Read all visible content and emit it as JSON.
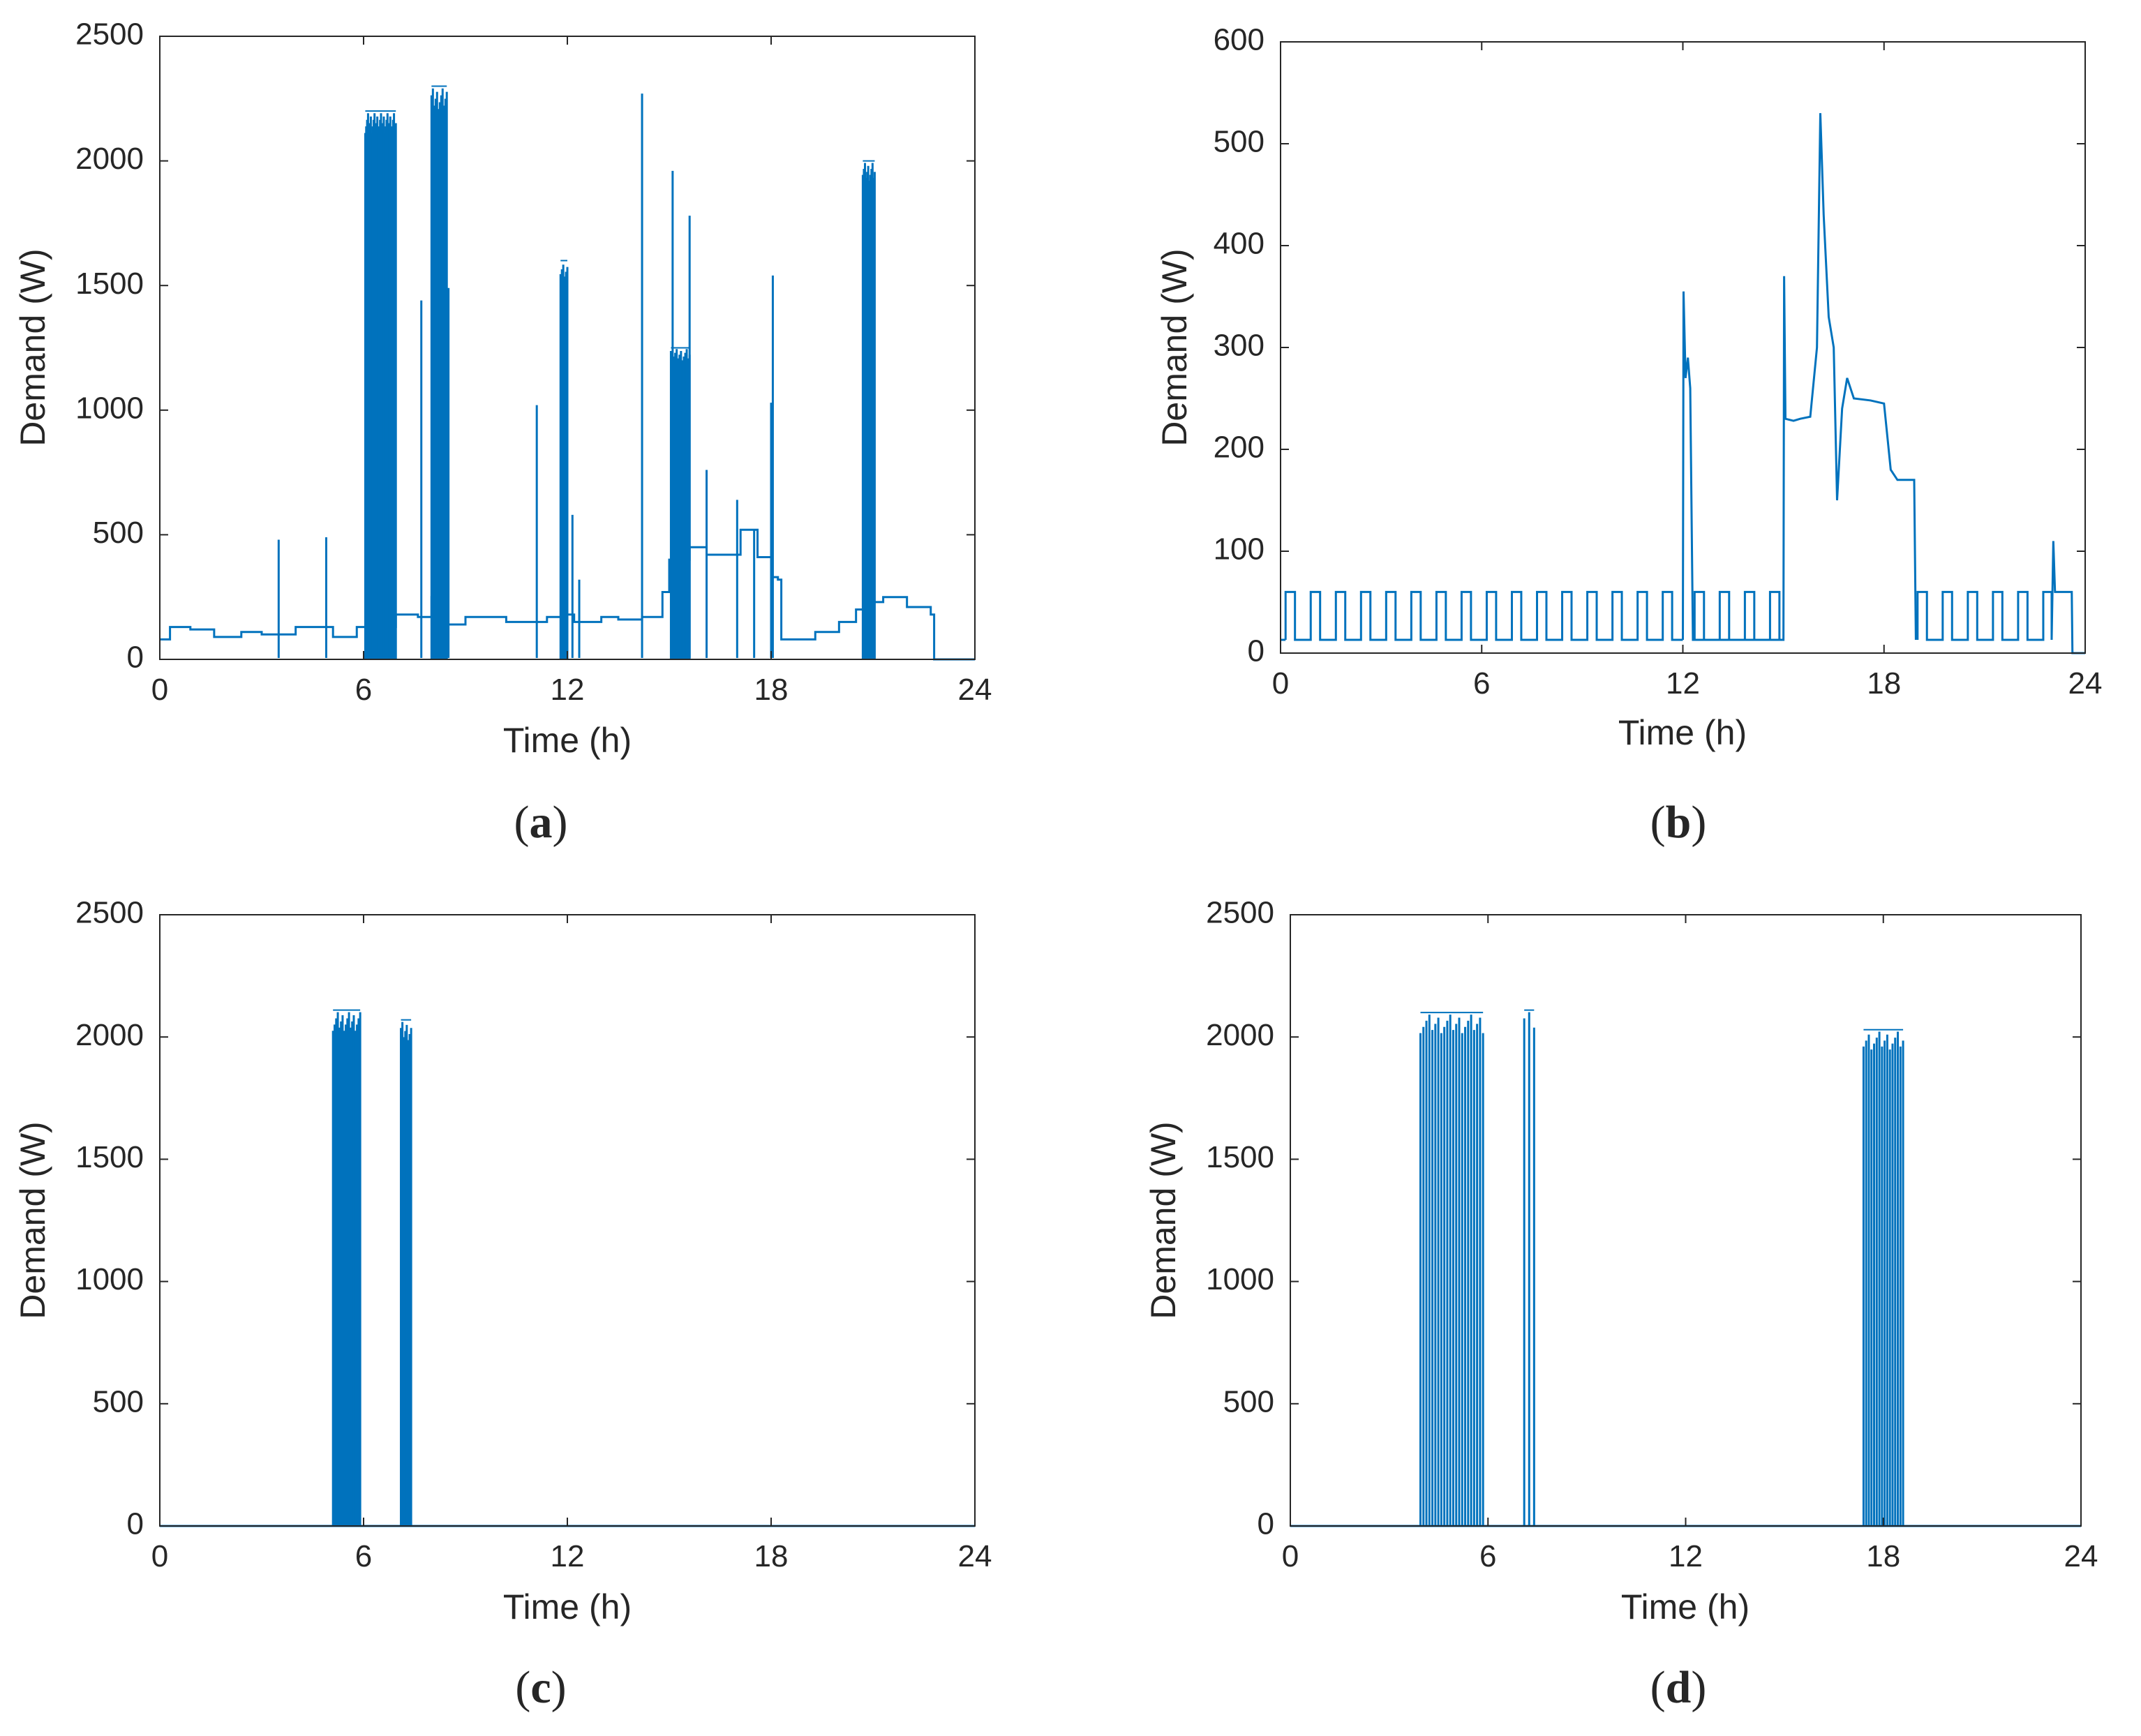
{
  "colors": {
    "series": "#0072BD",
    "axis": "#262626",
    "background": "#ffffff"
  },
  "chart_data": [
    {
      "id": "a",
      "type": "line",
      "panel_label": "a",
      "xlabel": "Time (h)",
      "ylabel": "Demand (W)",
      "xlim": [
        0,
        24
      ],
      "ylim": [
        0,
        2500
      ],
      "xticks": [
        0,
        6,
        12,
        18,
        24
      ],
      "yticks": [
        0,
        500,
        1000,
        1500,
        2000,
        2500
      ],
      "grid": false,
      "baseline_steps": [
        [
          0,
          80
        ],
        [
          0.3,
          130
        ],
        [
          0.9,
          120
        ],
        [
          1.6,
          90
        ],
        [
          2.4,
          110
        ],
        [
          3.0,
          100
        ],
        [
          4.0,
          130
        ],
        [
          5.1,
          90
        ],
        [
          5.8,
          130
        ],
        [
          6.0,
          130
        ],
        [
          6.95,
          180
        ],
        [
          7.6,
          170
        ],
        [
          8.0,
          250
        ],
        [
          8.4,
          140
        ],
        [
          9.0,
          170
        ],
        [
          10.2,
          150
        ],
        [
          11.4,
          170
        ],
        [
          11.9,
          180
        ],
        [
          12.2,
          150
        ],
        [
          13.0,
          170
        ],
        [
          13.5,
          160
        ],
        [
          14.2,
          170
        ],
        [
          14.8,
          270
        ],
        [
          15.0,
          400
        ],
        [
          15.6,
          450
        ],
        [
          16.1,
          420
        ],
        [
          17.1,
          520
        ],
        [
          17.6,
          410
        ],
        [
          18.0,
          330
        ],
        [
          18.2,
          320
        ],
        [
          18.3,
          80
        ],
        [
          19.3,
          110
        ],
        [
          20.0,
          150
        ],
        [
          20.5,
          200
        ],
        [
          20.9,
          230
        ],
        [
          21.3,
          250
        ],
        [
          22.0,
          210
        ],
        [
          22.7,
          180
        ],
        [
          22.8,
          0
        ],
        [
          24,
          0
        ]
      ],
      "spikes": [
        {
          "t": 3.5,
          "v": 480
        },
        {
          "t": 4.9,
          "v": 490
        },
        {
          "t": 7.7,
          "v": 1440
        },
        {
          "t": 8.5,
          "v": 1490
        },
        {
          "t": 11.1,
          "v": 1020
        },
        {
          "t": 12.15,
          "v": 580
        },
        {
          "t": 12.35,
          "v": 320
        },
        {
          "t": 14.2,
          "v": 2270
        },
        {
          "t": 15.1,
          "v": 1960
        },
        {
          "t": 15.6,
          "v": 1780
        },
        {
          "t": 17.0,
          "v": 640
        },
        {
          "t": 18.05,
          "v": 1540
        },
        {
          "t": 18.0,
          "v": 1030
        },
        {
          "t": 16.1,
          "v": 760
        },
        {
          "t": 17.5,
          "v": 520
        }
      ],
      "bursts": [
        {
          "start": 6.05,
          "end": 6.95,
          "v": 2200,
          "n": 34
        },
        {
          "start": 8.0,
          "end": 8.45,
          "v": 2300,
          "n": 12
        },
        {
          "start": 11.8,
          "end": 12.0,
          "v": 1600,
          "n": 6
        },
        {
          "start": 15.05,
          "end": 15.6,
          "v": 1250,
          "n": 14
        },
        {
          "start": 20.7,
          "end": 21.05,
          "v": 2000,
          "n": 12
        }
      ]
    },
    {
      "id": "b",
      "type": "line",
      "panel_label": "b",
      "xlabel": "Time (h)",
      "ylabel": "Demand (W)",
      "xlim": [
        0,
        24
      ],
      "ylim": [
        0,
        600
      ],
      "xticks": [
        0,
        6,
        12,
        18,
        24
      ],
      "yticks": [
        0,
        100,
        200,
        300,
        400,
        500,
        600
      ],
      "grid": false,
      "cycle": {
        "low": 13,
        "high": 60,
        "period_h": 0.75,
        "on_h": 0.28
      },
      "cycle_segments": [
        [
          0.15,
          12.0
        ],
        [
          12.35,
          15.0
        ],
        [
          19.0,
          23.0
        ]
      ],
      "events": [
        [
          12.0,
          13
        ],
        [
          12.02,
          355
        ],
        [
          12.08,
          270
        ],
        [
          12.15,
          290
        ],
        [
          12.22,
          260
        ],
        [
          12.3,
          13
        ],
        [
          15.0,
          13
        ],
        [
          15.02,
          370
        ],
        [
          15.06,
          230
        ],
        [
          15.3,
          228
        ],
        [
          15.5,
          230
        ],
        [
          15.8,
          232
        ],
        [
          16.0,
          300
        ],
        [
          16.1,
          530
        ],
        [
          16.2,
          430
        ],
        [
          16.35,
          330
        ],
        [
          16.5,
          300
        ],
        [
          16.6,
          150
        ],
        [
          16.75,
          240
        ],
        [
          16.9,
          270
        ],
        [
          17.1,
          250
        ],
        [
          17.6,
          248
        ],
        [
          18.0,
          245
        ],
        [
          18.2,
          180
        ],
        [
          18.4,
          170
        ],
        [
          18.9,
          170
        ],
        [
          18.95,
          13
        ]
      ],
      "tail": [
        [
          23.05,
          110
        ],
        [
          23.1,
          60
        ],
        [
          23.6,
          60
        ],
        [
          23.62,
          0
        ],
        [
          24,
          0
        ]
      ]
    },
    {
      "id": "c",
      "type": "line",
      "panel_label": "c",
      "xlabel": "Time (h)",
      "ylabel": "Demand (W)",
      "xlim": [
        0,
        24
      ],
      "ylim": [
        0,
        2500
      ],
      "xticks": [
        0,
        6,
        12,
        18,
        24
      ],
      "yticks": [
        0,
        500,
        1000,
        1500,
        2000,
        2500
      ],
      "grid": false,
      "bursts": [
        {
          "start": 5.1,
          "end": 5.9,
          "v": 2110,
          "n": 18
        },
        {
          "start": 7.1,
          "end": 7.4,
          "v": 2070,
          "n": 8
        }
      ]
    },
    {
      "id": "d",
      "type": "line",
      "panel_label": "d",
      "xlabel": "Time (h)",
      "ylabel": "Demand (W)",
      "xlim": [
        0,
        24
      ],
      "ylim": [
        0,
        2500
      ],
      "xticks": [
        0,
        6,
        12,
        18,
        24
      ],
      "yticks": [
        0,
        500,
        1000,
        1500,
        2000,
        2500
      ],
      "grid": false,
      "bursts": [
        {
          "start": 3.95,
          "end": 5.85,
          "v": 2100,
          "n": 22
        },
        {
          "start": 7.1,
          "end": 7.4,
          "v": 2110,
          "n": 3
        },
        {
          "start": 17.4,
          "end": 18.6,
          "v": 2030,
          "n": 16
        }
      ]
    }
  ]
}
